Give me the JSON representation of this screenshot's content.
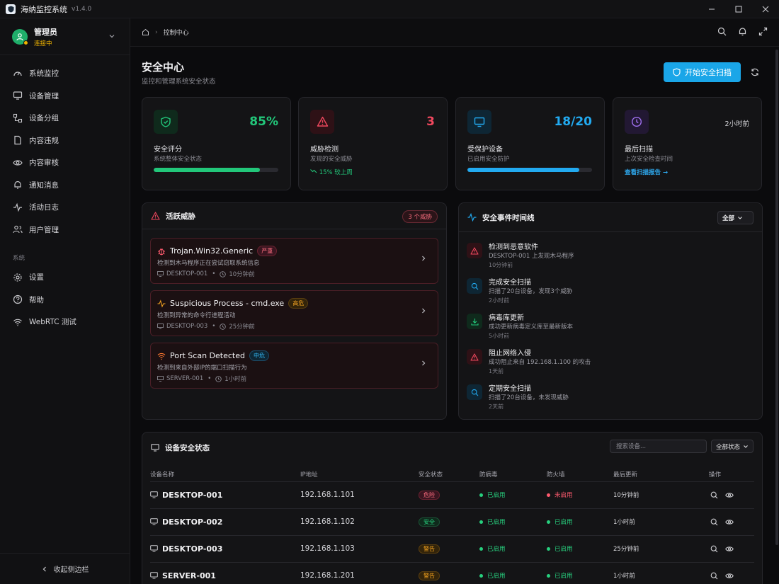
{
  "app": {
    "title": "海纳监控系统",
    "version": "v1.4.0"
  },
  "user": {
    "name": "管理员",
    "status": "连接中"
  },
  "sidebar": {
    "items": [
      {
        "label": "系统监控",
        "icon": "gauge-icon"
      },
      {
        "label": "设备管理",
        "icon": "monitor-icon"
      },
      {
        "label": "设备分组",
        "icon": "group-icon"
      },
      {
        "label": "内容违规",
        "icon": "file-icon"
      },
      {
        "label": "内容审核",
        "icon": "eye-icon"
      },
      {
        "label": "通知消息",
        "icon": "bell-icon"
      },
      {
        "label": "活动日志",
        "icon": "activity-icon"
      },
      {
        "label": "用户管理",
        "icon": "users-icon"
      }
    ],
    "section_label": "系统",
    "system_items": [
      {
        "label": "设置",
        "icon": "gear-icon"
      },
      {
        "label": "帮助",
        "icon": "help-icon"
      },
      {
        "label": "WebRTC 测试",
        "icon": "wifi-icon"
      }
    ],
    "collapse_label": "收起侧边栏"
  },
  "breadcrumb": {
    "current": "控制中心"
  },
  "page": {
    "title": "安全中心",
    "subtitle": "监控和管理系统安全状态",
    "scan_button": "开始安全扫描"
  },
  "stats": {
    "score": {
      "value": "85%",
      "label": "安全评分",
      "desc": "系统整体安全状态",
      "progress": 0.85,
      "color": "#22c77a"
    },
    "threats": {
      "value": "3",
      "label": "威胁检测",
      "desc": "发现的安全威胁",
      "trend": "15% 较上周",
      "color": "#f0485e"
    },
    "protected": {
      "value": "18/20",
      "label": "受保护设备",
      "desc": "已启用安全防护",
      "progress": 0.9,
      "color": "#22aaf0"
    },
    "last_scan": {
      "value": "2小时前",
      "label": "最后扫描",
      "desc": "上次安全检查时间",
      "link": "查看扫描报告 →",
      "color": "#a070f0"
    }
  },
  "threats_panel": {
    "title": "活跃威胁",
    "count_badge": "3 个威胁",
    "items": [
      {
        "name": "Trojan.Win32.Generic",
        "severity": "严重",
        "sev_class": "red",
        "desc": "检测到木马程序正在尝试窃取系统信息",
        "device": "DESKTOP-001",
        "time": "10分钟前"
      },
      {
        "name": "Suspicious Process - cmd.exe",
        "severity": "高危",
        "sev_class": "orange",
        "desc": "检测到异常的命令行进程活动",
        "device": "DESKTOP-003",
        "time": "25分钟前"
      },
      {
        "name": "Port Scan Detected",
        "severity": "中危",
        "sev_class": "blue",
        "desc": "检测到来自外部IP的端口扫描行为",
        "device": "SERVER-001",
        "time": "1小时前"
      }
    ]
  },
  "timeline": {
    "title": "安全事件时间线",
    "filter": "全部",
    "events": [
      {
        "title": "检测到恶意软件",
        "desc": "DESKTOP-001 上发现木马程序",
        "time": "10分钟前",
        "kind": "alert"
      },
      {
        "title": "完成安全扫描",
        "desc": "扫描了20台设备，发现3个威胁",
        "time": "2小时前",
        "kind": "scan"
      },
      {
        "title": "病毒库更新",
        "desc": "成功更新病毒定义库至最新版本",
        "time": "5小时前",
        "kind": "update"
      },
      {
        "title": "阻止网络入侵",
        "desc": "成功阻止来自 192.168.1.100 的攻击",
        "time": "1天前",
        "kind": "alert"
      },
      {
        "title": "定期安全扫描",
        "desc": "扫描了20台设备，未发现威胁",
        "time": "2天前",
        "kind": "scan"
      }
    ]
  },
  "devices": {
    "title": "设备安全状态",
    "search_placeholder": "搜索设备...",
    "status_filter": "全部状态",
    "columns": [
      "设备名称",
      "IP地址",
      "安全状态",
      "防病毒",
      "防火墙",
      "最后更新",
      "操作"
    ],
    "rows": [
      {
        "name": "DESKTOP-001",
        "ip": "192.168.1.101",
        "status": "危险",
        "status_class": "danger",
        "antivirus": "已启用",
        "av_on": true,
        "firewall": "未启用",
        "fw_on": false,
        "updated": "10分钟前"
      },
      {
        "name": "DESKTOP-002",
        "ip": "192.168.1.102",
        "status": "安全",
        "status_class": "safe",
        "antivirus": "已启用",
        "av_on": true,
        "firewall": "已启用",
        "fw_on": true,
        "updated": "1小时前"
      },
      {
        "name": "DESKTOP-003",
        "ip": "192.168.1.103",
        "status": "警告",
        "status_class": "warn",
        "antivirus": "已启用",
        "av_on": true,
        "firewall": "已启用",
        "fw_on": true,
        "updated": "25分钟前"
      },
      {
        "name": "SERVER-001",
        "ip": "192.168.1.201",
        "status": "警告",
        "status_class": "warn",
        "antivirus": "已启用",
        "av_on": true,
        "firewall": "已启用",
        "fw_on": true,
        "updated": "1小时前"
      }
    ]
  }
}
